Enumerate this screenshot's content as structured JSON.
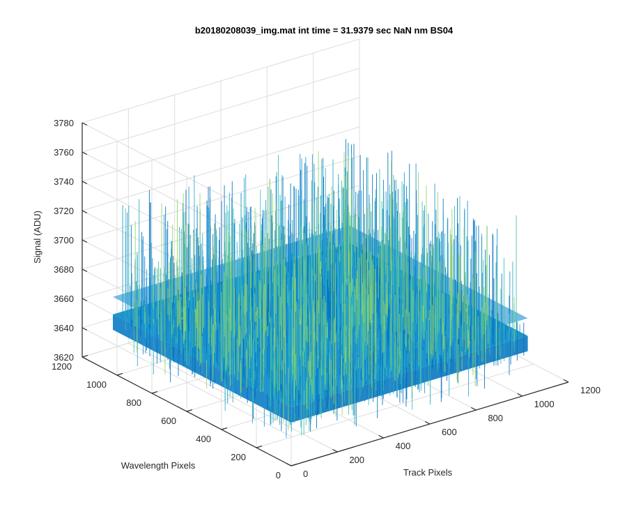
{
  "chart_data": {
    "type": "surface",
    "title": "b20180208039_img.mat int time = 31.9379 sec  NaN nm BS04",
    "xlabel": "Track Pixels",
    "ylabel": "Wavelength Pixels",
    "zlabel": "Signal (ADU)",
    "xlim": [
      0,
      1200
    ],
    "ylim": [
      0,
      1200
    ],
    "zlim": [
      3620,
      3780
    ],
    "x_ticks": [
      "0",
      "200",
      "400",
      "600",
      "800",
      "1000",
      "1200"
    ],
    "y_ticks": [
      "0",
      "200",
      "400",
      "600",
      "800",
      "1000",
      "1200"
    ],
    "z_ticks": [
      "3620",
      "3640",
      "3660",
      "3680",
      "3700",
      "3720",
      "3740",
      "3760",
      "3780"
    ],
    "surface": {
      "x_range": [
        0,
        1024
      ],
      "y_range": [
        0,
        1024
      ],
      "mean_signal": 3660,
      "noise_range": [
        3630,
        3745
      ]
    },
    "grid": true,
    "colormap": [
      "#0072bd",
      "#1a93d4",
      "#2aa8c9",
      "#3fbcae",
      "#8fd26b"
    ]
  }
}
